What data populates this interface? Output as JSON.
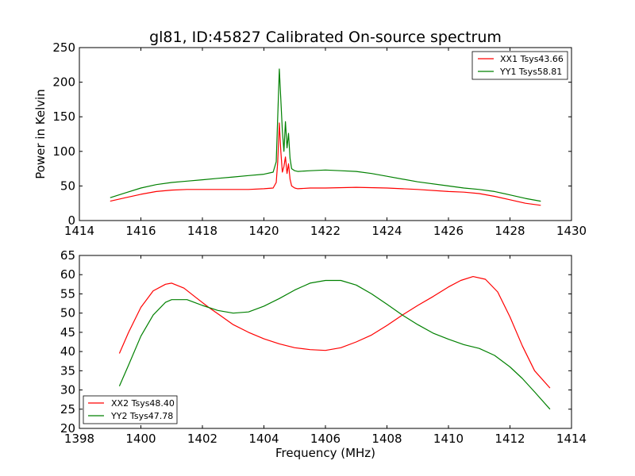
{
  "chart_data": [
    {
      "type": "line",
      "title": "gl81, ID:45827 Calibrated On-source spectrum",
      "xlabel": "",
      "ylabel": "Power in Kelvin",
      "xlim": [
        1414,
        1430
      ],
      "ylim": [
        0,
        250
      ],
      "xticks": [
        "1414",
        "1416",
        "1418",
        "1420",
        "1422",
        "1424",
        "1426",
        "1428",
        "1430"
      ],
      "yticks": [
        "0",
        "50",
        "100",
        "150",
        "200",
        "250"
      ],
      "grid": false,
      "legend": "top-right",
      "series": [
        {
          "name": "XX1 Tsys43.66",
          "color": "#ff0000",
          "x": [
            1415.0,
            1415.5,
            1416.0,
            1416.5,
            1417.0,
            1417.5,
            1418.0,
            1418.5,
            1419.0,
            1419.5,
            1420.0,
            1420.3,
            1420.4,
            1420.45,
            1420.5,
            1420.55,
            1420.6,
            1420.65,
            1420.7,
            1420.75,
            1420.8,
            1420.85,
            1420.9,
            1421.0,
            1421.1,
            1421.5,
            1422.0,
            1423.0,
            1424.0,
            1425.0,
            1426.0,
            1426.5,
            1427.0,
            1427.5,
            1428.0,
            1428.5,
            1429.0
          ],
          "y": [
            28,
            33,
            38,
            42,
            44,
            45,
            45,
            45,
            45,
            45,
            46,
            47,
            55,
            85,
            141,
            100,
            70,
            78,
            92,
            68,
            82,
            60,
            50,
            47,
            46,
            47,
            47,
            48,
            47,
            45,
            42,
            41,
            39,
            35,
            30,
            25,
            22
          ]
        },
        {
          "name": "YY1 Tsys58.81",
          "color": "#008000",
          "x": [
            1415.0,
            1415.5,
            1416.0,
            1416.5,
            1417.0,
            1417.5,
            1418.0,
            1418.5,
            1419.0,
            1419.5,
            1420.0,
            1420.3,
            1420.4,
            1420.45,
            1420.5,
            1420.55,
            1420.6,
            1420.65,
            1420.7,
            1420.75,
            1420.8,
            1420.85,
            1420.9,
            1421.0,
            1421.1,
            1421.5,
            1422.0,
            1422.5,
            1423.0,
            1423.5,
            1424.0,
            1425.0,
            1426.0,
            1426.5,
            1427.0,
            1427.5,
            1428.0,
            1428.5,
            1429.0
          ],
          "y": [
            33,
            40,
            47,
            52,
            55,
            57,
            59,
            61,
            63,
            65,
            67,
            70,
            85,
            150,
            219,
            175,
            130,
            100,
            143,
            105,
            126,
            90,
            75,
            72,
            71,
            72,
            73,
            72,
            71,
            68,
            64,
            56,
            50,
            47,
            45,
            42,
            37,
            32,
            28
          ]
        }
      ]
    },
    {
      "type": "line",
      "title": "",
      "xlabel": "Frequency (MHz)",
      "ylabel": "",
      "xlim": [
        1398,
        1414
      ],
      "ylim": [
        20,
        65
      ],
      "xticks": [
        "1398",
        "1400",
        "1402",
        "1404",
        "1406",
        "1408",
        "1410",
        "1412",
        "1414"
      ],
      "yticks": [
        "20",
        "25",
        "30",
        "35",
        "40",
        "45",
        "50",
        "55",
        "60",
        "65"
      ],
      "grid": false,
      "legend": "bottom-left",
      "series": [
        {
          "name": "XX2 Tsys48.40",
          "color": "#ff0000",
          "x": [
            1399.3,
            1399.6,
            1400.0,
            1400.4,
            1400.8,
            1401.0,
            1401.4,
            1401.8,
            1402.2,
            1402.6,
            1403.0,
            1403.5,
            1404.0,
            1404.5,
            1405.0,
            1405.5,
            1406.0,
            1406.5,
            1407.0,
            1407.5,
            1408.0,
            1408.5,
            1409.0,
            1409.5,
            1410.0,
            1410.4,
            1410.8,
            1411.2,
            1411.6,
            1412.0,
            1412.4,
            1412.8,
            1413.3
          ],
          "y": [
            39.5,
            45.0,
            51.5,
            55.8,
            57.5,
            57.8,
            56.5,
            54.0,
            51.5,
            49.3,
            47.0,
            45.0,
            43.3,
            42.0,
            41.0,
            40.5,
            40.3,
            41.0,
            42.5,
            44.3,
            46.8,
            49.5,
            52.0,
            54.3,
            56.8,
            58.5,
            59.5,
            58.8,
            55.5,
            49.0,
            41.5,
            35.0,
            30.5
          ]
        },
        {
          "name": "YY2 Tsys47.78",
          "color": "#008000",
          "x": [
            1399.3,
            1399.6,
            1400.0,
            1400.4,
            1400.8,
            1401.0,
            1401.5,
            1402.0,
            1402.5,
            1403.0,
            1403.5,
            1404.0,
            1404.5,
            1405.0,
            1405.5,
            1406.0,
            1406.5,
            1407.0,
            1407.5,
            1408.0,
            1408.5,
            1409.0,
            1409.5,
            1410.0,
            1410.5,
            1411.0,
            1411.5,
            1412.0,
            1412.4,
            1412.8,
            1413.3
          ],
          "y": [
            31.0,
            36.5,
            44.0,
            49.5,
            52.8,
            53.5,
            53.5,
            52.0,
            50.7,
            50.0,
            50.3,
            51.8,
            53.8,
            56.0,
            57.8,
            58.5,
            58.5,
            57.3,
            55.0,
            52.3,
            49.5,
            47.0,
            44.8,
            43.2,
            41.8,
            40.8,
            39.0,
            36.0,
            33.0,
            29.5,
            25.0
          ]
        }
      ]
    }
  ]
}
